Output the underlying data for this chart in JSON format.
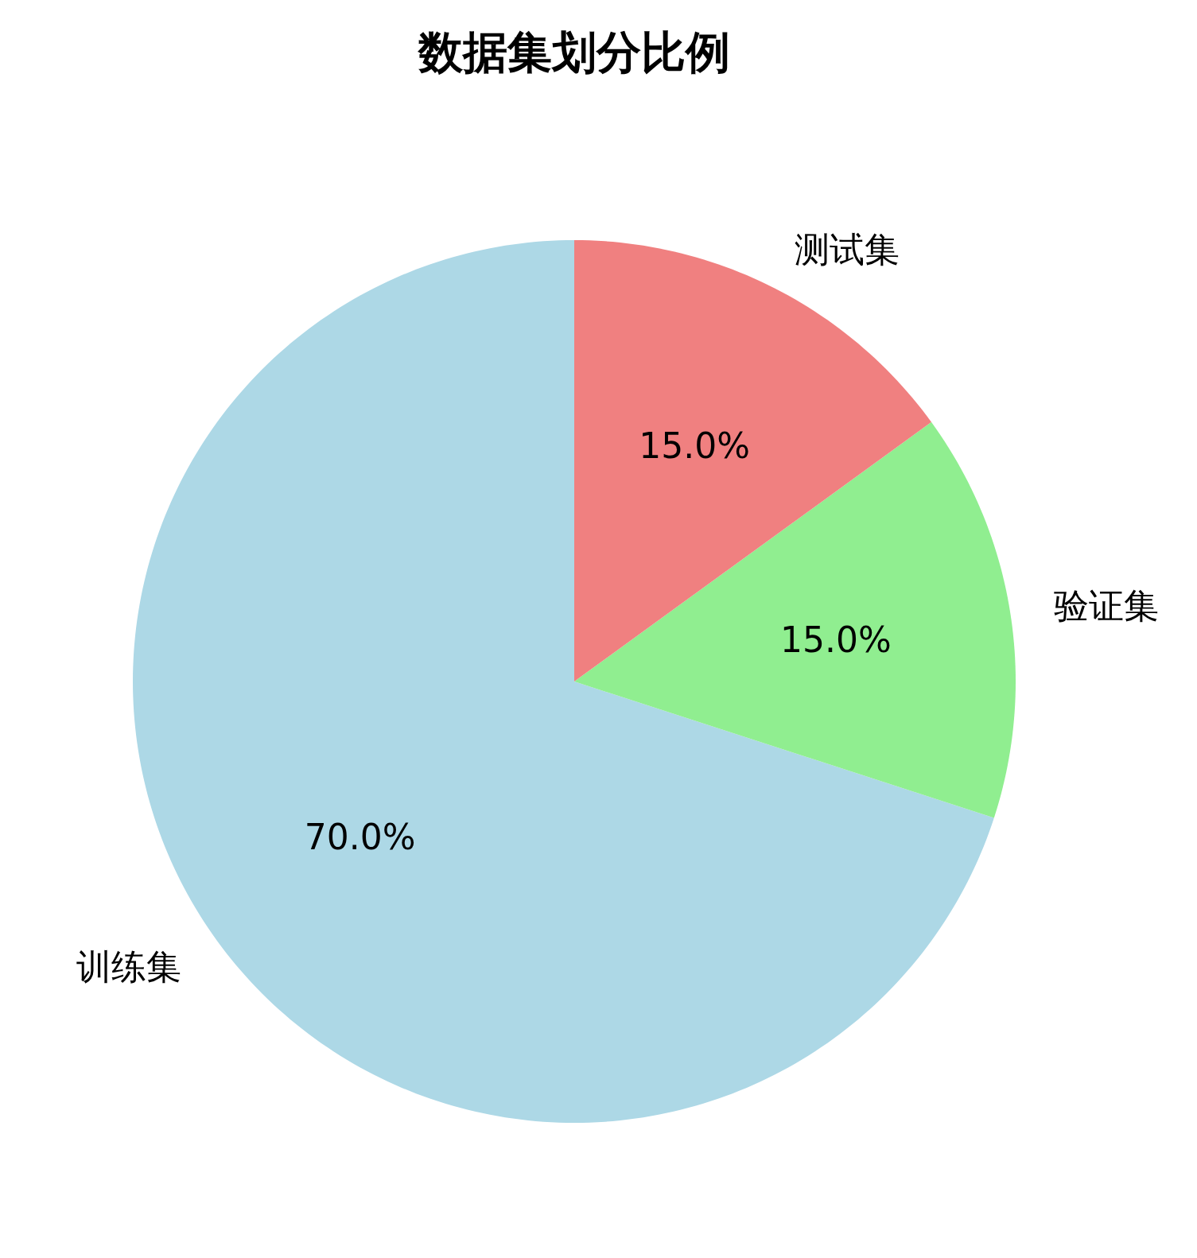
{
  "chart_data": {
    "type": "pie",
    "title": "数据集划分比例",
    "categories": [
      "训练集",
      "验证集",
      "测试集"
    ],
    "values": [
      70,
      15,
      15
    ],
    "colors": [
      "#add8e6",
      "#90ee90",
      "#f08080"
    ],
    "value_labels": [
      "70.0%",
      "15.0%",
      "15.0%"
    ]
  }
}
